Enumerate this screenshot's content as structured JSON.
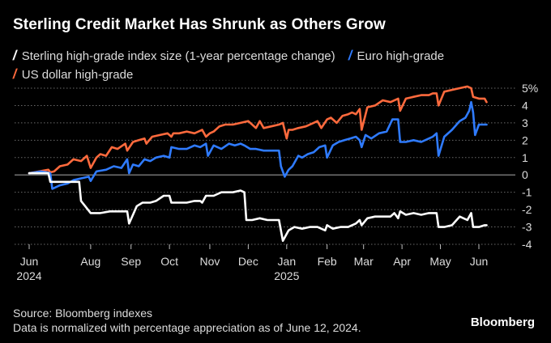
{
  "header": {
    "title": "Sterling Credit Market Has Shrunk as Others Grow"
  },
  "legend": {
    "items": [
      {
        "label": "Sterling high-grade index size (1-year percentage change)",
        "color": "#ffffff"
      },
      {
        "label": "Euro high-grade",
        "color": "#2f7bff"
      },
      {
        "label": "US dollar high-grade",
        "color": "#ff6a3d"
      }
    ]
  },
  "footer": {
    "source": "Source: Bloomberg indexes",
    "note": "Data is normalized with percentage appreciation as of June 12, 2024.",
    "brand": "Bloomberg"
  },
  "chart_data": {
    "type": "line",
    "title": "Sterling Credit Market Has Shrunk as Others Grow",
    "xlabel": "",
    "ylabel": "",
    "ylim": [
      -4,
      5
    ],
    "xlim": [
      0,
      12.35
    ],
    "x_ticks": [
      {
        "pos": 0,
        "label": "Jun",
        "sub": "2024"
      },
      {
        "pos": 1.6,
        "label": "Aug",
        "sub": ""
      },
      {
        "pos": 2.65,
        "label": "Sep",
        "sub": ""
      },
      {
        "pos": 3.65,
        "label": "Oct",
        "sub": ""
      },
      {
        "pos": 4.7,
        "label": "Nov",
        "sub": ""
      },
      {
        "pos": 5.7,
        "label": "Dec",
        "sub": ""
      },
      {
        "pos": 6.7,
        "label": "Jan",
        "sub": "2025"
      },
      {
        "pos": 7.75,
        "label": "Feb",
        "sub": ""
      },
      {
        "pos": 8.7,
        "label": "Mar",
        "sub": ""
      },
      {
        "pos": 9.7,
        "label": "Apr",
        "sub": ""
      },
      {
        "pos": 10.7,
        "label": "May",
        "sub": ""
      },
      {
        "pos": 11.7,
        "label": "Jun",
        "sub": ""
      }
    ],
    "y_ticks": [
      {
        "value": 5,
        "label": "5%"
      },
      {
        "value": 4,
        "label": "4"
      },
      {
        "value": 3,
        "label": "3"
      },
      {
        "value": 2,
        "label": "2"
      },
      {
        "value": 1,
        "label": "1"
      },
      {
        "value": 0,
        "label": "0"
      },
      {
        "value": -1,
        "label": "-1"
      },
      {
        "value": -2,
        "label": "-2"
      },
      {
        "value": -3,
        "label": "-3"
      },
      {
        "value": -4,
        "label": "-4"
      }
    ],
    "series": [
      {
        "name": "US dollar high-grade",
        "color": "#ff6a3d",
        "x": [
          0,
          0.25,
          0.5,
          0.55,
          0.65,
          0.8,
          1.0,
          1.15,
          1.35,
          1.5,
          1.6,
          1.75,
          1.85,
          2.0,
          2.15,
          2.3,
          2.5,
          2.55,
          2.7,
          2.85,
          3.0,
          3.05,
          3.2,
          3.4,
          3.6,
          3.7,
          3.75,
          3.9,
          4.1,
          4.3,
          4.5,
          4.6,
          4.7,
          4.8,
          4.95,
          5.1,
          5.3,
          5.5,
          5.7,
          5.9,
          6.0,
          6.1,
          6.3,
          6.5,
          6.6,
          6.7,
          6.75,
          6.85,
          7.0,
          7.2,
          7.4,
          7.5,
          7.6,
          7.75,
          7.85,
          8.0,
          8.15,
          8.3,
          8.4,
          8.5,
          8.6,
          8.65,
          8.8,
          9.0,
          9.2,
          9.4,
          9.6,
          9.65,
          9.8,
          10.0,
          10.2,
          10.4,
          10.5,
          10.6,
          10.65,
          10.8,
          11.0,
          11.2,
          11.4,
          11.5,
          11.55,
          11.7,
          11.85,
          11.9
        ],
        "values": [
          0.1,
          0.2,
          0.3,
          0.15,
          0.2,
          0.5,
          0.6,
          0.9,
          0.8,
          1.1,
          0.4,
          1.0,
          1.2,
          1.1,
          1.6,
          1.5,
          1.8,
          1.4,
          1.9,
          2.0,
          2.1,
          1.8,
          2.2,
          2.3,
          2.4,
          2.2,
          2.4,
          2.4,
          2.5,
          2.4,
          2.6,
          2.2,
          2.4,
          2.5,
          2.8,
          2.9,
          2.9,
          3.0,
          3.1,
          2.7,
          3.1,
          2.7,
          2.8,
          2.9,
          3.0,
          2.1,
          2.6,
          2.6,
          2.7,
          2.8,
          3.0,
          3.1,
          2.7,
          3.2,
          3.3,
          3.0,
          3.4,
          3.5,
          3.6,
          3.5,
          3.8,
          2.6,
          3.9,
          4.0,
          4.3,
          4.2,
          4.4,
          3.7,
          4.4,
          4.5,
          4.6,
          4.6,
          4.7,
          4.7,
          4.0,
          4.8,
          4.9,
          5.0,
          5.1,
          5.0,
          4.5,
          4.4,
          4.4,
          4.2
        ]
      },
      {
        "name": "Euro high-grade",
        "color": "#2f7bff",
        "x": [
          0,
          0.3,
          0.45,
          0.55,
          0.6,
          0.8,
          1.0,
          1.15,
          1.35,
          1.55,
          1.6,
          1.75,
          2.0,
          2.2,
          2.4,
          2.55,
          2.6,
          2.7,
          2.85,
          3.0,
          3.15,
          3.3,
          3.5,
          3.65,
          3.7,
          3.9,
          4.1,
          4.3,
          4.45,
          4.6,
          4.65,
          4.8,
          5.0,
          5.2,
          5.35,
          5.5,
          5.6,
          5.75,
          5.9,
          6.1,
          6.3,
          6.5,
          6.55,
          6.65,
          6.75,
          6.85,
          7.0,
          7.1,
          7.25,
          7.4,
          7.55,
          7.7,
          7.75,
          7.9,
          8.05,
          8.2,
          8.35,
          8.5,
          8.6,
          8.65,
          8.75,
          8.9,
          9.1,
          9.3,
          9.45,
          9.6,
          9.65,
          9.8,
          10.0,
          10.2,
          10.4,
          10.5,
          10.6,
          10.65,
          10.8,
          11.0,
          11.2,
          11.35,
          11.45,
          11.5,
          11.55,
          11.6,
          11.7,
          11.9
        ],
        "values": [
          0.1,
          0.2,
          0.15,
          0.1,
          -0.8,
          -0.6,
          -0.5,
          -0.3,
          -0.2,
          -0.1,
          -0.35,
          0.2,
          0.3,
          0.5,
          0.4,
          0.9,
          0.1,
          0.6,
          0.5,
          0.9,
          0.8,
          1.0,
          1.1,
          1.0,
          1.6,
          1.5,
          1.5,
          1.7,
          1.6,
          1.8,
          1.1,
          1.7,
          1.5,
          1.8,
          1.7,
          1.8,
          1.7,
          1.5,
          1.5,
          1.4,
          1.4,
          1.4,
          0.5,
          -0.1,
          0.3,
          0.5,
          1.1,
          1.0,
          1.2,
          1.3,
          1.6,
          1.7,
          1.0,
          1.7,
          1.9,
          2.0,
          2.1,
          2.2,
          2.0,
          1.6,
          2.3,
          2.1,
          2.4,
          2.5,
          3.2,
          3.2,
          1.9,
          1.9,
          2.0,
          1.9,
          2.1,
          2.2,
          2.4,
          1.1,
          2.2,
          2.6,
          3.1,
          3.3,
          3.7,
          4.2,
          3.6,
          2.3,
          2.9,
          2.9
        ]
      },
      {
        "name": "Sterling high-grade index size (1-year percentage change)",
        "color": "#ffffff",
        "x": [
          0,
          0.3,
          0.5,
          0.55,
          1.2,
          1.3,
          1.35,
          1.6,
          1.65,
          1.85,
          2.1,
          2.3,
          2.55,
          2.6,
          2.7,
          2.8,
          2.95,
          3.15,
          3.3,
          3.5,
          3.65,
          3.7,
          3.9,
          4.1,
          4.3,
          4.45,
          4.5,
          4.6,
          4.8,
          5.0,
          5.2,
          5.3,
          5.5,
          5.6,
          5.65,
          5.8,
          6.0,
          6.2,
          6.45,
          6.5,
          6.6,
          6.7,
          6.75,
          6.9,
          7.1,
          7.3,
          7.5,
          7.6,
          7.7,
          7.75,
          7.9,
          8.1,
          8.3,
          8.5,
          8.6,
          8.65,
          8.8,
          9.0,
          9.2,
          9.4,
          9.5,
          9.6,
          9.65,
          9.8,
          10.0,
          10.2,
          10.4,
          10.5,
          10.6,
          10.65,
          10.8,
          11.0,
          11.2,
          11.4,
          11.5,
          11.55,
          11.7,
          11.85,
          11.9
        ],
        "values": [
          0.1,
          0.1,
          0.1,
          -0.4,
          -0.4,
          -0.4,
          -1.5,
          -2.2,
          -2.2,
          -2.2,
          -2.1,
          -2.1,
          -2.1,
          -2.8,
          -2.3,
          -1.8,
          -1.6,
          -1.6,
          -1.5,
          -1.2,
          -1.2,
          -1.6,
          -1.6,
          -1.6,
          -1.5,
          -1.5,
          -1.6,
          -1.2,
          -1.2,
          -1.0,
          -1.0,
          -1.0,
          -0.9,
          -1.0,
          -2.6,
          -2.6,
          -2.5,
          -2.6,
          -2.6,
          -2.6,
          -3.8,
          -3.4,
          -3.2,
          -3.0,
          -3.1,
          -3.0,
          -3.0,
          -3.1,
          -3.2,
          -2.9,
          -3.1,
          -3.0,
          -3.0,
          -2.8,
          -2.6,
          -2.9,
          -2.5,
          -2.4,
          -2.4,
          -2.4,
          -2.2,
          -2.5,
          -2.1,
          -2.3,
          -2.2,
          -2.3,
          -2.2,
          -2.2,
          -2.2,
          -3.0,
          -3.0,
          -2.9,
          -2.4,
          -2.6,
          -2.2,
          -3.0,
          -3.0,
          -2.9,
          -2.9
        ]
      }
    ]
  }
}
